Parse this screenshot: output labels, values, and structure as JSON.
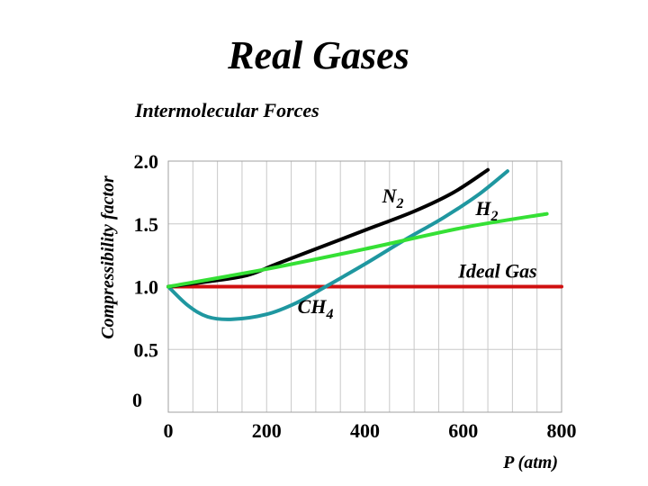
{
  "title": "Real Gases",
  "subtitle": "Intermolecular Forces",
  "colors": {
    "N2": "#000000",
    "H2": "#1f97a0",
    "CH4": "#1f97a0",
    "ideal": "#35e035",
    "ideal_line": "#d01010",
    "grid": "#c8c8c8"
  },
  "chart_data": {
    "type": "line",
    "title": "Real Gases",
    "subtitle": "Intermolecular Forces",
    "xlabel": "P (atm)",
    "ylabel": "Compressibility factor",
    "xlim": [
      0,
      800
    ],
    "ylim": [
      0,
      2.0
    ],
    "xticks": [
      {
        "value": 0,
        "label": "0"
      },
      {
        "value": 200,
        "label": "200"
      },
      {
        "value": 400,
        "label": "400"
      },
      {
        "value": 600,
        "label": "600"
      },
      {
        "value": 800,
        "label": "800"
      }
    ],
    "yticks": [
      {
        "value": 0,
        "label": "0"
      },
      {
        "value": 0.5,
        "label": "0.5"
      },
      {
        "value": 1.0,
        "label": "1.0"
      },
      {
        "value": 1.5,
        "label": "1.5"
      },
      {
        "value": 2.0,
        "label": "2.0"
      }
    ],
    "grid": true,
    "series": [
      {
        "name": "Ideal Gas",
        "label": "Ideal Gas",
        "color_key": "ideal_line",
        "points": [
          [
            0,
            1.0
          ],
          [
            800,
            1.0
          ]
        ]
      },
      {
        "name": "N2",
        "label": "N",
        "label_sub": "2",
        "color_key": "N2",
        "points": [
          [
            0,
            1.0
          ],
          [
            80,
            1.04
          ],
          [
            160,
            1.09
          ],
          [
            220,
            1.18
          ],
          [
            300,
            1.3
          ],
          [
            400,
            1.45
          ],
          [
            500,
            1.6
          ],
          [
            580,
            1.75
          ],
          [
            650,
            1.93
          ]
        ]
      },
      {
        "name": "H2",
        "label": "H",
        "label_sub": "2",
        "color_key": "ideal",
        "points": [
          [
            0,
            1.0
          ],
          [
            200,
            1.14
          ],
          [
            400,
            1.3
          ],
          [
            600,
            1.47
          ],
          [
            770,
            1.58
          ]
        ]
      },
      {
        "name": "CH4",
        "label": "CH",
        "label_sub": "4",
        "color_key": "CH4",
        "points": [
          [
            0,
            1.0
          ],
          [
            40,
            0.85
          ],
          [
            80,
            0.76
          ],
          [
            130,
            0.74
          ],
          [
            200,
            0.78
          ],
          [
            260,
            0.87
          ],
          [
            320,
            1.0
          ],
          [
            400,
            1.18
          ],
          [
            480,
            1.37
          ],
          [
            560,
            1.55
          ],
          [
            630,
            1.73
          ],
          [
            690,
            1.92
          ]
        ]
      }
    ],
    "labels": [
      {
        "series": "N2",
        "x": 435,
        "y": 1.67
      },
      {
        "series": "H2",
        "x": 625,
        "y": 1.57
      },
      {
        "series": "Ideal Gas",
        "x": 590,
        "y": 1.07
      },
      {
        "series": "CH4",
        "x": 263,
        "y": 0.79
      }
    ]
  }
}
